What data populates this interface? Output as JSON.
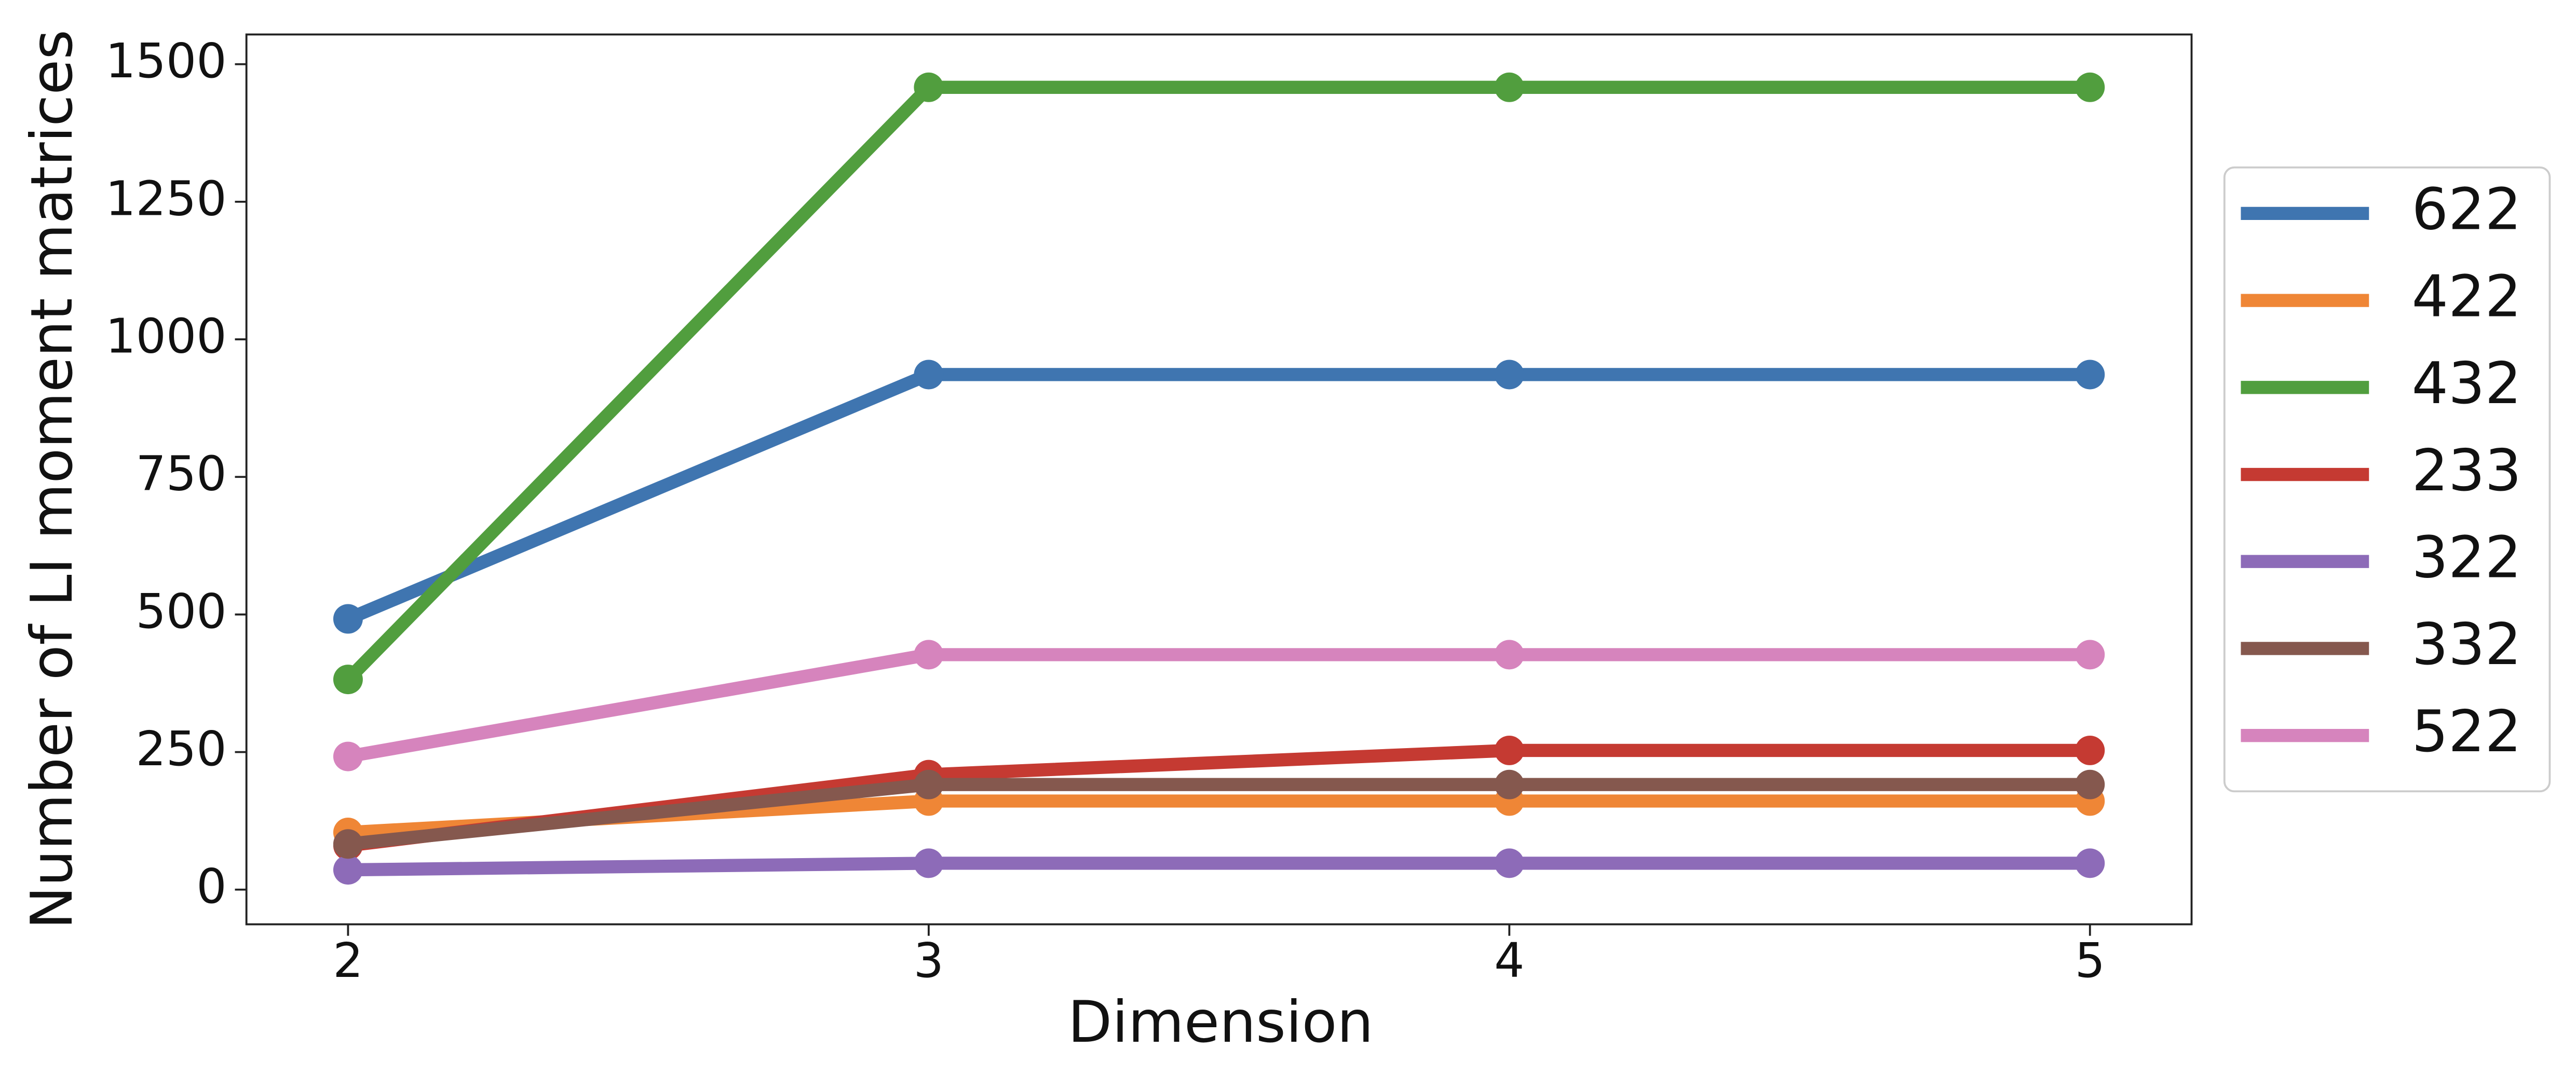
{
  "chart_data": {
    "type": "line",
    "x_label": "Dimension",
    "y_label": "Number of LI moment matrices",
    "x": [
      2,
      3,
      4,
      5
    ],
    "series": [
      {
        "name": "622",
        "color": "#3f75b0",
        "values": [
          492,
          936,
          936,
          936
        ]
      },
      {
        "name": "422",
        "color": "#ef8636",
        "values": [
          104,
          161,
          161,
          161
        ]
      },
      {
        "name": "432",
        "color": "#519e3e",
        "values": [
          382,
          1458,
          1458,
          1458
        ]
      },
      {
        "name": "233",
        "color": "#c53a32",
        "values": [
          80,
          209,
          253,
          253
        ]
      },
      {
        "name": "322",
        "color": "#8d6bb8",
        "values": [
          36,
          48,
          48,
          48
        ]
      },
      {
        "name": "332",
        "color": "#85584e",
        "values": [
          83,
          191,
          191,
          191
        ]
      },
      {
        "name": "522",
        "color": "#d684bd",
        "values": [
          242,
          427,
          427,
          427
        ]
      }
    ],
    "xlim": [
      1.825,
      5.175
    ],
    "xticks": [
      2,
      3,
      4,
      5
    ],
    "ylim": [
      -63,
      1554
    ],
    "yticks": [
      0,
      250,
      500,
      750,
      1000,
      1250,
      1500
    ],
    "grid": false,
    "legend": "right"
  }
}
